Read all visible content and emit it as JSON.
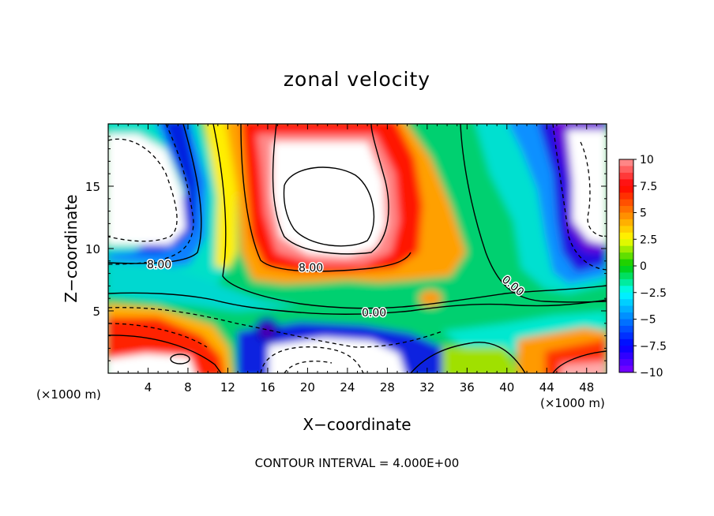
{
  "chart_data": {
    "type": "heatmap",
    "title": "zonal velocity",
    "xlabel": "X−coordinate",
    "ylabel": "Z−coordinate",
    "x_unit_label": "(×1000 m)",
    "xlim": [
      0,
      50
    ],
    "ylim": [
      0,
      20
    ],
    "x_ticks": [
      4,
      8,
      12,
      16,
      20,
      24,
      28,
      32,
      36,
      40,
      44,
      48
    ],
    "y_ticks": [
      5,
      10,
      15
    ],
    "colorbar": {
      "ticks": [
        "10",
        "7.5",
        "5",
        "2.5",
        "0",
        "−2.5",
        "−5",
        "−7.5",
        "−10"
      ],
      "levels": [
        10,
        7.5,
        5,
        2.5,
        0,
        -2.5,
        -5,
        -7.5,
        -10
      ],
      "colors": [
        "#ff9999",
        "#ff0000",
        "#ff8000",
        "#ffff00",
        "#00cc00",
        "#00ffff",
        "#0080ff",
        "#0000ff",
        "#8000ff"
      ]
    },
    "contour_labels": [
      {
        "text": "8.00",
        "x": 4.4,
        "z": 8.5
      },
      {
        "text": "8.00",
        "x": 18.6,
        "z": 8.3
      },
      {
        "text": "0.00",
        "x": 26.5,
        "z": 4.8
      },
      {
        "text": "0.00",
        "x": 40.5,
        "z": 7.0
      }
    ],
    "footer": "CONTOUR INTERVAL = 4.000E+00"
  }
}
